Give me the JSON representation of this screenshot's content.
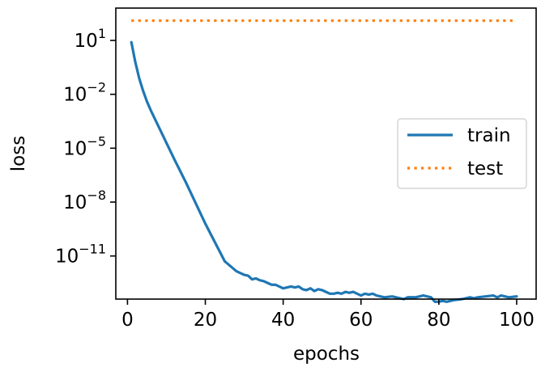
{
  "chart_data": {
    "type": "line",
    "title": "",
    "xlabel": "epochs",
    "ylabel": "loss",
    "xlim": [
      -3,
      105
    ],
    "ylim_log10": [
      -13.4,
      2.8
    ],
    "y_scale": "log",
    "grid": false,
    "legend_position": "center-right",
    "x_ticks": [
      0,
      20,
      40,
      60,
      80,
      100
    ],
    "y_ticks": [
      {
        "base": "10",
        "exponent": "1",
        "value_log10": 1
      },
      {
        "base": "10",
        "exponent": "−2",
        "value_log10": -2
      },
      {
        "base": "10",
        "exponent": "−5",
        "value_log10": -5
      },
      {
        "base": "10",
        "exponent": "−8",
        "value_log10": -8
      },
      {
        "base": "10",
        "exponent": "−11",
        "value_log10": -11
      }
    ],
    "series": [
      {
        "name": "train",
        "color": "#1f77b4",
        "style": "solid",
        "x": [
          1,
          2,
          3,
          4,
          5,
          6,
          8,
          10,
          12,
          15,
          20,
          25,
          28,
          29,
          30,
          31,
          32,
          33,
          34,
          35,
          36,
          37,
          38,
          40,
          42,
          43,
          44,
          45,
          46,
          47,
          48,
          49,
          50,
          51,
          52,
          53,
          54,
          55,
          56,
          57,
          58,
          59,
          60,
          61,
          62,
          63,
          64,
          65,
          66,
          68,
          70,
          71,
          72,
          74,
          76,
          77,
          78,
          79,
          80,
          81,
          82,
          84,
          86,
          88,
          89,
          90,
          92,
          94,
          95,
          96,
          98,
          100
        ],
        "y_log10": [
          0.9,
          -0.2,
          -1.1,
          -1.8,
          -2.4,
          -2.9,
          -3.8,
          -4.7,
          -5.6,
          -6.9,
          -9.2,
          -11.3,
          -11.85,
          -11.95,
          -12.05,
          -12.1,
          -12.3,
          -12.25,
          -12.35,
          -12.4,
          -12.5,
          -12.6,
          -12.6,
          -12.8,
          -12.7,
          -12.75,
          -12.7,
          -12.85,
          -12.9,
          -12.8,
          -12.95,
          -12.85,
          -12.9,
          -13.0,
          -13.1,
          -13.1,
          -13.05,
          -13.1,
          -13.0,
          -13.05,
          -13.0,
          -13.1,
          -13.2,
          -13.1,
          -13.15,
          -13.1,
          -13.2,
          -13.25,
          -13.3,
          -13.25,
          -13.35,
          -13.4,
          -13.3,
          -13.3,
          -13.2,
          -13.25,
          -13.3,
          -13.55,
          -13.55,
          -13.5,
          -13.55,
          -13.45,
          -13.4,
          -13.3,
          -13.35,
          -13.3,
          -13.25,
          -13.2,
          -13.3,
          -13.2,
          -13.3,
          -13.25
        ]
      },
      {
        "name": "test",
        "color": "#ff7f0e",
        "style": "dotted",
        "x": [
          1,
          100
        ],
        "y_log10": [
          2.1,
          2.1
        ]
      }
    ]
  }
}
